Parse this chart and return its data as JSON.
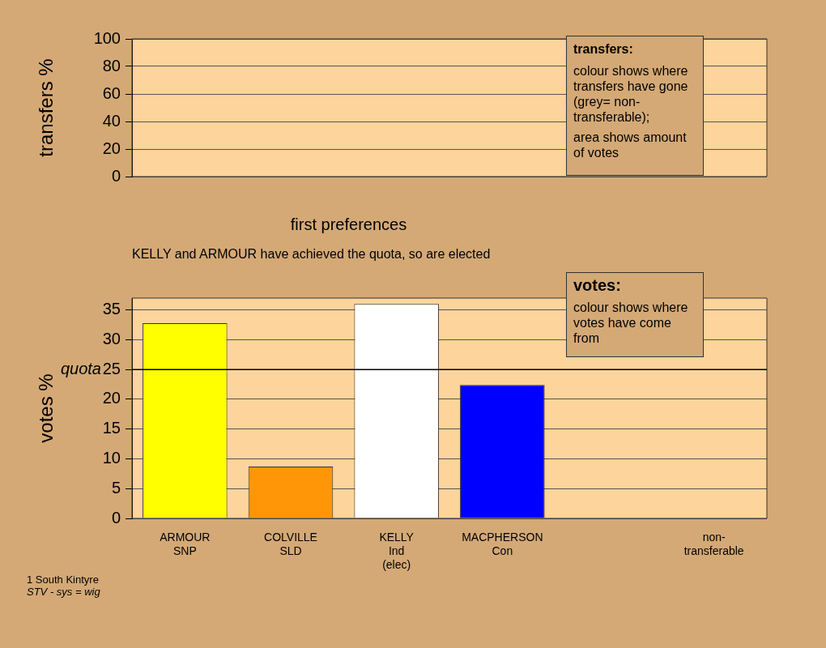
{
  "chart_data": [
    {
      "type": "bar",
      "ylabel": "transfers %",
      "categories": [
        null,
        null,
        null,
        null,
        null,
        null
      ],
      "values": [
        null,
        null,
        null,
        null,
        null,
        null
      ],
      "ylim": [
        0,
        100
      ],
      "yticks": [
        0,
        20,
        40,
        60,
        80,
        100
      ],
      "grid": true,
      "tick_labels": "y",
      "annotations": [
        "transfers:",
        "colour shows where transfers have gone (grey= non-transferable);",
        "area shows amount of votes"
      ]
    },
    {
      "type": "bar",
      "title": "first preferences",
      "subtitle": "KELLY and ARMOUR have achieved the quota, so are elected",
      "ylabel": "votes %",
      "categories": [
        "ARMOUR\nSNP",
        "COLVILLE\nSLD",
        "KELLY\nInd\n(elec)",
        "MACPHERSON\nCon",
        null,
        "non-\ntransferable"
      ],
      "values": [
        32.8,
        8.7,
        36.0,
        22.4,
        null,
        null
      ],
      "colors": [
        "#ffff00",
        "#ff9608",
        "#ffffff",
        "#0000ff",
        "#cccccc",
        "#cccccc"
      ],
      "ylim": [
        0,
        37
      ],
      "yticks": [
        0,
        5,
        10,
        15,
        20,
        25,
        30,
        35
      ],
      "grid": true,
      "ref_lines": [
        {
          "axis": "y",
          "value": 25,
          "label": "quota"
        }
      ],
      "annotations": [
        "votes:",
        "colour shows where votes have come from",
        "1 South Kintyre",
        "STV - sys = wig"
      ]
    }
  ]
}
